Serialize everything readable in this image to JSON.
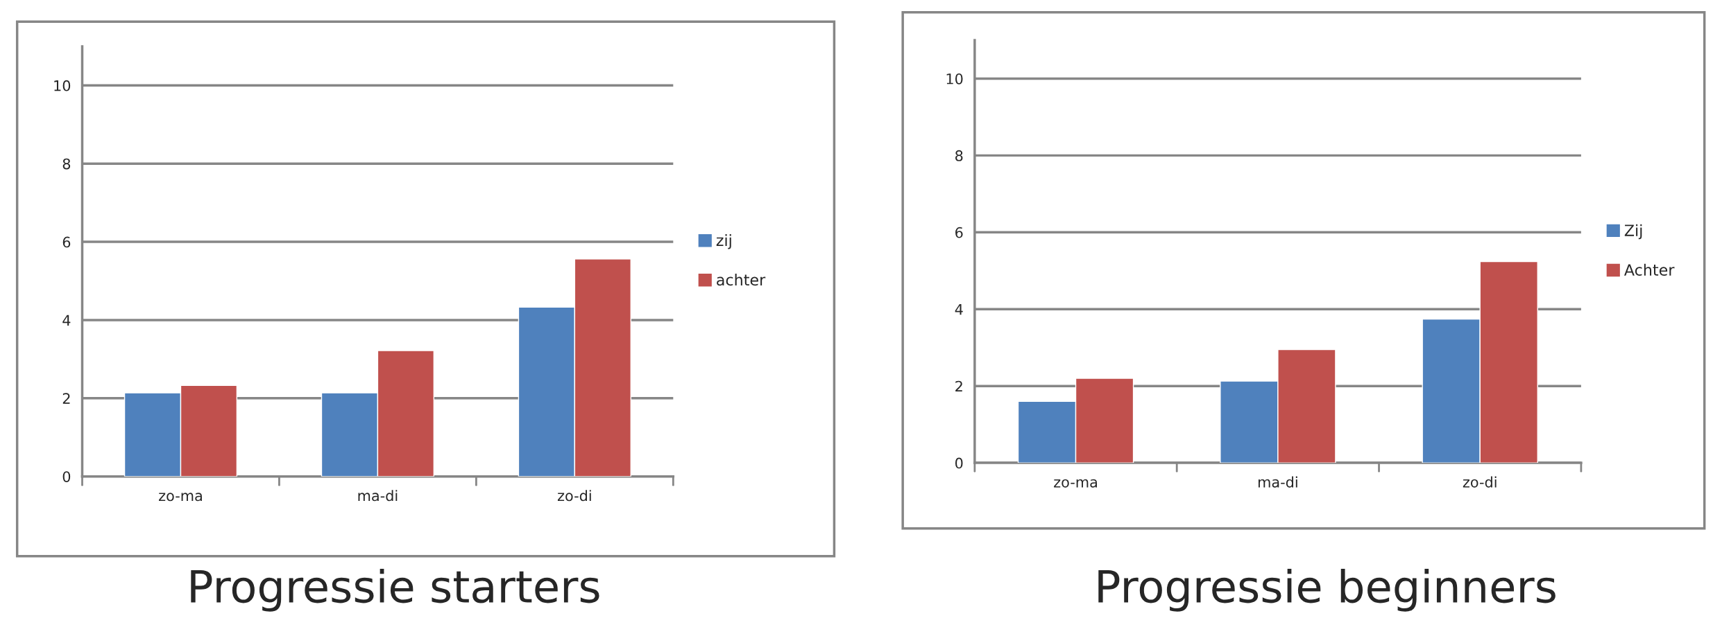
{
  "chart_data": [
    {
      "type": "bar",
      "title": "Progressie starters",
      "categories": [
        "zo-ma",
        "ma-di",
        "zo-di"
      ],
      "series": [
        {
          "name": "zij",
          "color": "#4f81bd",
          "values": [
            2.14,
            2.14,
            4.33
          ]
        },
        {
          "name": "achter",
          "color": "#c0504d",
          "values": [
            2.33,
            3.22,
            5.56
          ]
        }
      ],
      "ylim": [
        0,
        11
      ],
      "yticks": [
        0,
        2,
        4,
        6,
        8,
        10
      ],
      "grid": "y",
      "legend": "right"
    },
    {
      "type": "bar",
      "title": "Progressie beginners",
      "categories": [
        "zo-ma",
        "ma-di",
        "zo-di"
      ],
      "series": [
        {
          "name": "Zij",
          "color": "#4f81bd",
          "values": [
            1.6,
            2.13,
            3.74
          ]
        },
        {
          "name": "Achter",
          "color": "#c0504d",
          "values": [
            2.2,
            2.95,
            5.24
          ]
        }
      ],
      "ylim": [
        0,
        11
      ],
      "yticks": [
        0,
        2,
        4,
        6,
        8,
        10
      ],
      "grid": "y",
      "legend": "right"
    }
  ]
}
